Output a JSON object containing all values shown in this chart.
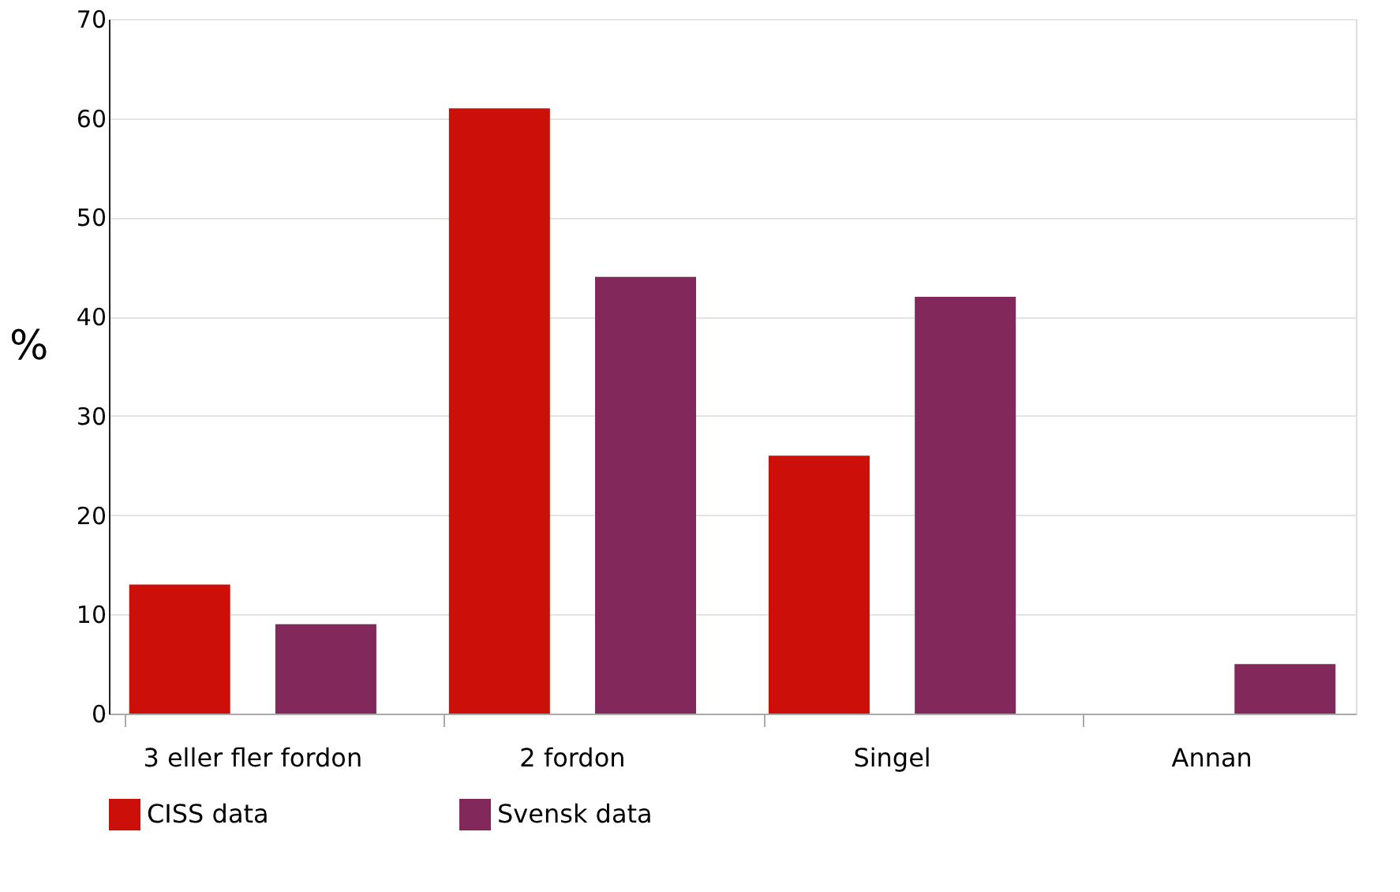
{
  "chart_data": {
    "type": "bar",
    "ylabel": "%",
    "categories": [
      "3 eller fler fordon",
      "2 fordon",
      "Singel",
      "Annan"
    ],
    "series": [
      {
        "name": "CISS data",
        "color": "#cc1009",
        "values": [
          13,
          61,
          26,
          0
        ]
      },
      {
        "name": "Svensk data",
        "color": "#82285a",
        "values": [
          9,
          44,
          42,
          5
        ]
      }
    ],
    "ylim": [
      0,
      70
    ],
    "yticks": [
      0,
      10,
      20,
      30,
      40,
      50,
      60,
      70
    ],
    "grid": "y",
    "legend": "bottom left"
  }
}
